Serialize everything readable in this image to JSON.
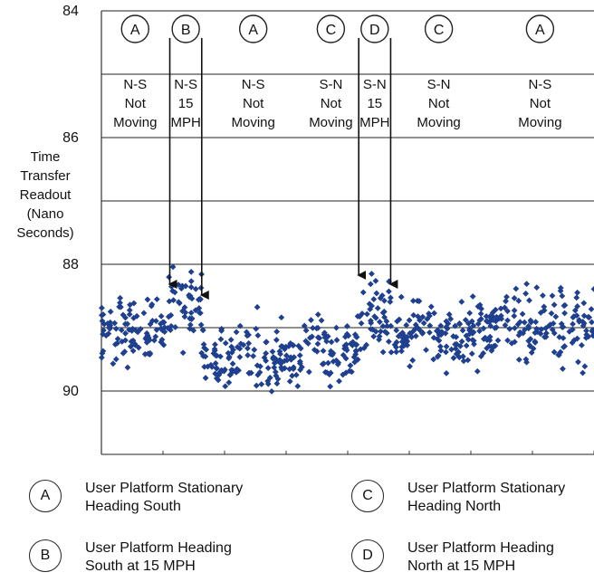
{
  "chart_data": {
    "type": "scatter",
    "title": "",
    "xlabel": "",
    "ylabel": "Time Transfer Readout (Nano Seconds)",
    "y_tick_labels": [
      "84",
      "86",
      "88",
      "90"
    ],
    "ylim": [
      84,
      91.1
    ],
    "y_inverted": true,
    "grid": true,
    "marker_color": "#1f3f8f",
    "segments": [
      {
        "code": "A",
        "label": "N-S Not Moving",
        "x_start": 0.0,
        "x_end": 1.0,
        "mean": 89.0
      },
      {
        "code": "B",
        "label": "N-S 15 MPH",
        "x_start": 1.0,
        "x_end": 1.5,
        "mean": 88.7
      },
      {
        "code": "A",
        "label": "N-S Not Moving",
        "x_start": 1.5,
        "x_end": 3.0,
        "mean": 89.5
      },
      {
        "code": "C",
        "label": "S-N Not Moving",
        "x_start": 3.0,
        "x_end": 3.8,
        "mean": 89.3
      },
      {
        "code": "D",
        "label": "S-N 15 MPH",
        "x_start": 3.8,
        "x_end": 4.3,
        "mean": 88.8
      },
      {
        "code": "C",
        "label": "S-N Not Moving",
        "x_start": 4.3,
        "x_end": 5.7,
        "mean": 89.1
      },
      {
        "code": "A",
        "label": "N-S Not Moving",
        "x_start": 5.7,
        "x_end": 7.3,
        "mean": 89.0
      }
    ],
    "arrows": [
      {
        "segment": 1,
        "at": "start"
      },
      {
        "segment": 1,
        "at": "end"
      },
      {
        "segment": 4,
        "at": "start"
      },
      {
        "segment": 4,
        "at": "end"
      }
    ],
    "x_range": [
      0,
      7.3
    ],
    "series": [
      {
        "values_note": "",
        "y": []
      }
    ]
  },
  "column_labels": [
    {
      "code": "A",
      "line1": "N-S",
      "line2": "Not",
      "line3": "Moving"
    },
    {
      "code": "B",
      "line1": "N-S",
      "line2": "15",
      "line3": "MPH"
    },
    {
      "code": "A",
      "line1": "N-S",
      "line2": "Not",
      "line3": "Moving"
    },
    {
      "code": "C",
      "line1": "S-N",
      "line2": "Not",
      "line3": "Moving"
    },
    {
      "code": "D",
      "line1": "S-N",
      "line2": "15",
      "line3": "MPH"
    },
    {
      "code": "C",
      "line1": "S-N",
      "line2": "Not",
      "line3": "Moving"
    },
    {
      "code": "A",
      "line1": "N-S",
      "line2": "Not",
      "line3": "Moving"
    }
  ],
  "legend": [
    {
      "code": "A",
      "text": "User Platform Stationary\n Heading South"
    },
    {
      "code": "C",
      "text": "User Platform Stationary\n Heading North"
    },
    {
      "code": "B",
      "text": "User Platform Heading\nSouth at 15 MPH"
    },
    {
      "code": "D",
      "text": "User Platform Heading\nNorth at 15 MPH"
    }
  ]
}
